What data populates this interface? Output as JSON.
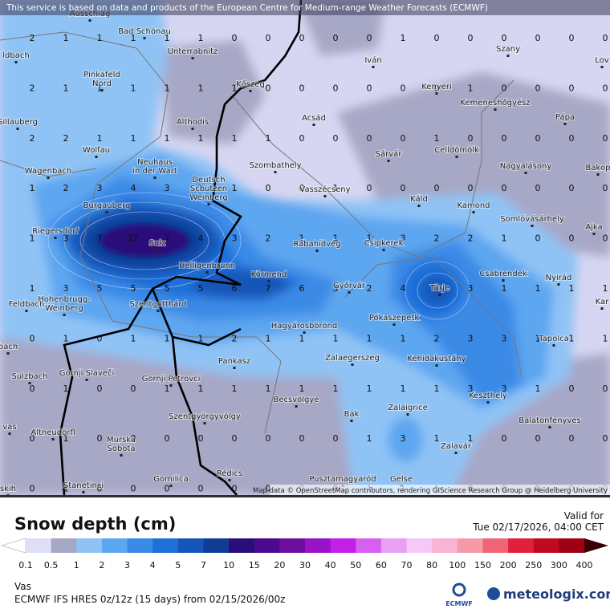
{
  "header": {
    "notice": "This service is based on data and products of the European Centre for Medium-range Weather Forecasts (ECMWF)"
  },
  "map": {
    "attribution": "Map data © OpenStreetMap contributors, rendering GIScience Research Group @ Heidelberg University",
    "grid": [
      [
        2,
        1,
        1,
        1,
        1,
        1,
        0,
        0,
        0,
        0,
        0,
        1,
        0,
        0,
        0,
        0,
        0,
        0
      ],
      [
        2,
        1,
        1,
        1,
        1,
        1,
        1,
        0,
        0,
        0,
        0,
        0,
        0,
        1,
        0,
        0,
        0,
        0
      ],
      [
        2,
        2,
        1,
        1,
        1,
        1,
        1,
        1,
        0,
        0,
        0,
        0,
        1,
        0,
        0,
        0,
        0,
        0
      ],
      [
        1,
        2,
        3,
        4,
        3,
        1,
        1,
        0,
        0,
        1,
        0,
        0,
        0,
        0,
        0,
        0,
        0,
        0
      ],
      [
        1,
        3,
        7,
        12,
        7,
        4,
        3,
        2,
        1,
        1,
        1,
        3,
        2,
        2,
        1,
        0,
        0,
        0
      ],
      [
        1,
        3,
        5,
        5,
        5,
        5,
        6,
        7,
        6,
        3,
        2,
        4,
        4,
        3,
        1,
        1,
        1,
        1
      ],
      [
        0,
        1,
        0,
        1,
        1,
        1,
        2,
        1,
        1,
        1,
        1,
        1,
        2,
        3,
        3,
        1,
        1,
        1
      ],
      [
        0,
        1,
        0,
        0,
        1,
        1,
        1,
        1,
        1,
        1,
        1,
        1,
        1,
        3,
        3,
        1,
        0,
        0
      ],
      [
        0,
        1,
        0,
        0,
        0,
        0,
        0,
        0,
        0,
        0,
        1,
        3,
        1,
        1,
        0,
        0,
        0,
        0
      ],
      [
        0,
        1,
        0,
        0,
        0,
        0,
        0,
        0,
        0,
        0,
        1,
        1,
        1,
        0,
        0,
        0,
        0,
        0
      ]
    ],
    "places": [
      [
        "Ausschlag"
      ],
      [
        "Bad Schönau"
      ],
      [
        "Unterrabnitz"
      ],
      [
        "ldbach"
      ],
      [
        "Pinkafeld",
        "Nord"
      ],
      [
        "Kőszeg"
      ],
      [
        "Iván"
      ],
      [
        "Szany"
      ],
      [
        "Lov"
      ],
      [
        "Kenyeri"
      ],
      [
        "Kemeneshőgyész"
      ],
      [
        "Acsád"
      ],
      [
        "Althodis"
      ],
      [
        "Pápa"
      ],
      [
        "Sillauberg"
      ],
      [
        "Wolfau"
      ],
      [
        "Sárvár"
      ],
      [
        "Celldömölk"
      ],
      [
        "Neuhaus",
        "in der Wart"
      ],
      [
        "Szombathely"
      ],
      [
        "Nagyalásony"
      ],
      [
        "Bakop"
      ],
      [
        "Wagenbach"
      ],
      [
        "Deutsch",
        "Schützen",
        "Weinberg"
      ],
      [
        "Vasszécseny"
      ],
      [
        "Káld"
      ],
      [
        "Kamond"
      ],
      [
        "Burgauberg"
      ],
      [
        "Somlóvásárhely"
      ],
      [
        "Ajka"
      ],
      [
        "Riegersdorf"
      ],
      [
        "Sulz"
      ],
      [
        "Rábahídvég"
      ],
      [
        "Csipkerek"
      ],
      [
        "Heiligenbrunn"
      ],
      [
        "Csabrendek"
      ],
      [
        "Körmend"
      ],
      [
        "Nyirád"
      ],
      [
        "Türje"
      ],
      [
        "Győrvár"
      ],
      [
        "Feldbach"
      ],
      [
        "Hohenbrugg-",
        "Weinberg"
      ],
      [
        "Szentgotthárd"
      ],
      [
        "Kar"
      ],
      [
        "Pókaszepetk"
      ],
      [
        "Hagyárosbörönd"
      ],
      [
        "Tapolca"
      ],
      [
        "bach"
      ],
      [
        "Zalaegerszeg"
      ],
      [
        "Kehidakustány"
      ],
      [
        "Pankasz"
      ],
      [
        "Sulzbach"
      ],
      [
        "Gornji Slaveči"
      ],
      [
        "Gornji Petrovci"
      ],
      [
        "Keszthely"
      ],
      [
        "Becsvölgye"
      ],
      [
        "Zalaigrice"
      ],
      [
        "Bak"
      ],
      [
        "Balatonfenyves"
      ],
      [
        "Szentgyörgyvölgy"
      ],
      [
        "vas"
      ],
      [
        "Altneudörfl"
      ],
      [
        "Murska",
        "Sobota"
      ],
      [
        "Zalavár"
      ],
      [
        "Rédics"
      ],
      [
        "Pusztamagyaród"
      ],
      [
        "Gomilica"
      ],
      [
        "Gelse"
      ],
      [
        "Stanetinci"
      ],
      [
        "skih"
      ]
    ]
  },
  "legend": {
    "title": "Snow depth (cm)",
    "labels": [
      0.1,
      0.5,
      1,
      2,
      3,
      4,
      5,
      7,
      10,
      15,
      20,
      30,
      40,
      50,
      60,
      70,
      80,
      100,
      150,
      200,
      250,
      300,
      400
    ],
    "colors": [
      "#dedef7",
      "#a7a7c6",
      "#8fc3f5",
      "#5da6f0",
      "#3a8ae6",
      "#1f6fd9",
      "#1556b8",
      "#0f3d96",
      "#2a0d7a",
      "#4b0a8c",
      "#6e0ea0",
      "#9a12c8",
      "#c020e8",
      "#d860f0",
      "#e8a0f5",
      "#f5c8f5",
      "#f8b4d0",
      "#f59aa8",
      "#f06478",
      "#e0203c",
      "#c00a1e",
      "#a00014"
    ]
  },
  "valid": {
    "label": "Valid for",
    "time": "Tue 02/17/2026, 04:00 CET"
  },
  "footer": {
    "region": "Vas",
    "model": "ECMWF IFS HRES 0z/12z (15 days) from  02/15/2026/00z",
    "ecmwf": "ECMWF",
    "brand": "meteologix.com"
  }
}
